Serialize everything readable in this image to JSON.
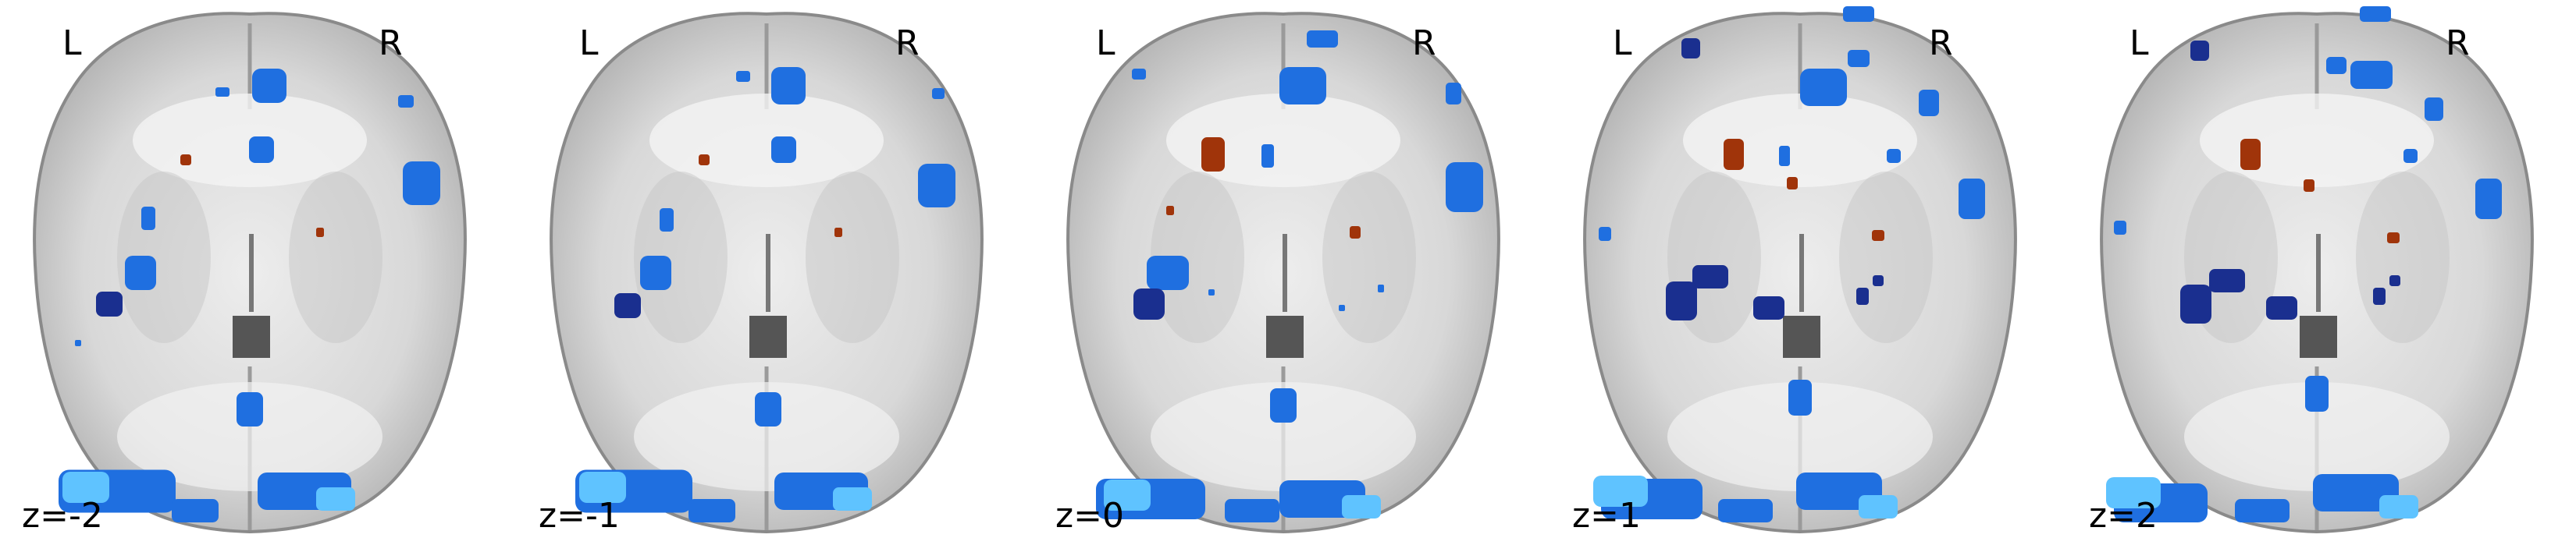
{
  "panels": [
    {
      "left_label": "L",
      "right_label": "R",
      "slice_label": "z=-2",
      "slice": -2
    },
    {
      "left_label": "L",
      "right_label": "R",
      "slice_label": "z=-1",
      "slice": -1
    },
    {
      "left_label": "L",
      "right_label": "R",
      "slice_label": "z=0",
      "slice": 0
    },
    {
      "left_label": "L",
      "right_label": "R",
      "slice_label": "z=1",
      "slice": 1
    },
    {
      "left_label": "L",
      "right_label": "R",
      "slice_label": "z=2",
      "slice": 2
    }
  ],
  "colors": {
    "background": "#ffffff",
    "brain_tissue": "#d9d9d9",
    "brain_edge": "#8a8a8a",
    "ventricle": "#555555",
    "activation_negative_strong": "#1a2f8f",
    "activation_negative": "#1f6fe0",
    "activation_negative_weak": "#5fc3ff",
    "activation_positive": "#a0340a"
  }
}
